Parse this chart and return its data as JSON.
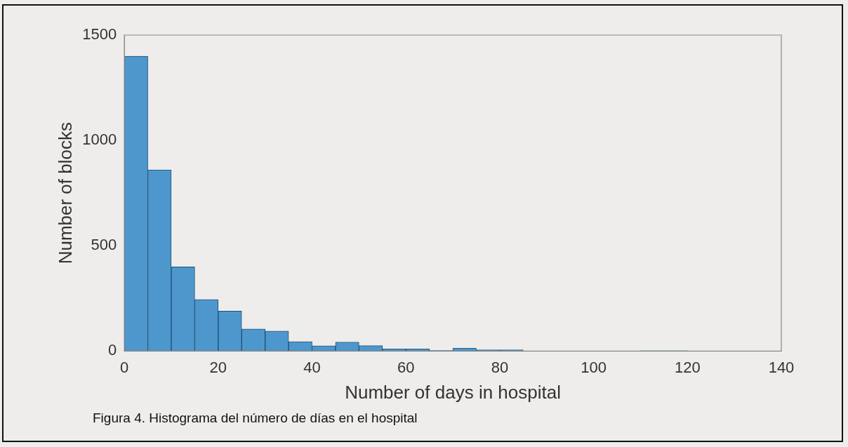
{
  "chart_data": {
    "type": "histogram",
    "xlabel": "Number of days in hospital",
    "ylabel": "Number of blocks",
    "bins": [
      0,
      5,
      10,
      15,
      20,
      25,
      30,
      35,
      40,
      45,
      50,
      55,
      60,
      65,
      70,
      75,
      80,
      85,
      90,
      95,
      100,
      105,
      110,
      115,
      120,
      125,
      130,
      135,
      140
    ],
    "values": [
      1400,
      860,
      400,
      245,
      190,
      105,
      95,
      45,
      25,
      43,
      26,
      11,
      11,
      3,
      14,
      6,
      6,
      0,
      0,
      0,
      0,
      0,
      2,
      2,
      0,
      0,
      0,
      0
    ],
    "color": "#4d97cd",
    "xlim": [
      0,
      140
    ],
    "xticks": [
      0,
      20,
      40,
      60,
      80,
      100,
      120,
      140
    ],
    "ylim": [
      0,
      1500
    ],
    "yticks": [
      0,
      500,
      1000,
      1500
    ],
    "grid": false,
    "annotations": [
      "Figura 4. Histograma del número de días en el hospital"
    ]
  }
}
